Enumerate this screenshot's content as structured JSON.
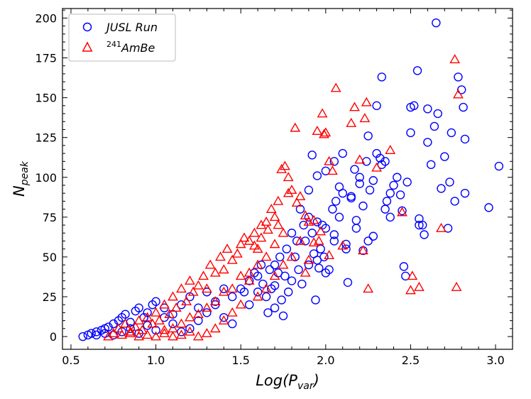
{
  "chart_data": {
    "type": "scatter",
    "title": "",
    "xlabel": "Log(P",
    "xlabel_sub": "var",
    "xlabel_close": ")",
    "ylabel": "N",
    "ylabel_sub": "peak",
    "xlim": [
      0.45,
      3.1
    ],
    "ylim": [
      -8,
      206
    ],
    "xticks": [
      0.5,
      1.0,
      1.5,
      2.0,
      2.5,
      3.0
    ],
    "yticks": [
      0,
      25,
      50,
      75,
      100,
      125,
      150,
      175,
      200
    ],
    "xtick_labels": [
      "0.5",
      "1.0",
      "1.5",
      "2.0",
      "2.5",
      "3.0"
    ],
    "ytick_labels": [
      "0",
      "25",
      "50",
      "75",
      "100",
      "125",
      "150",
      "175",
      "200"
    ],
    "grid": false,
    "legend_position": "top-left",
    "series": [
      {
        "name": "JUSL Run",
        "legend_prefix": "",
        "legend_main": "JUSL Run",
        "marker": "circle",
        "color": "#0000ff",
        "points": [
          [
            0.57,
            0
          ],
          [
            0.6,
            1
          ],
          [
            0.62,
            2
          ],
          [
            0.65,
            3
          ],
          [
            0.68,
            4
          ],
          [
            0.7,
            5
          ],
          [
            0.72,
            6
          ],
          [
            0.75,
            8
          ],
          [
            0.78,
            10
          ],
          [
            0.8,
            12
          ],
          [
            0.82,
            14
          ],
          [
            0.85,
            9
          ],
          [
            0.88,
            16
          ],
          [
            0.9,
            18
          ],
          [
            0.93,
            12
          ],
          [
            0.95,
            15
          ],
          [
            0.98,
            20
          ],
          [
            1.0,
            22
          ],
          [
            1.05,
            18
          ],
          [
            1.1,
            14
          ],
          [
            1.15,
            20
          ],
          [
            1.2,
            25
          ],
          [
            1.25,
            18
          ],
          [
            1.3,
            15
          ],
          [
            1.35,
            22
          ],
          [
            1.4,
            12
          ],
          [
            1.45,
            8
          ],
          [
            1.5,
            30
          ],
          [
            1.52,
            28
          ],
          [
            1.55,
            35
          ],
          [
            1.58,
            40
          ],
          [
            1.6,
            38
          ],
          [
            1.62,
            45
          ],
          [
            1.65,
            25
          ],
          [
            1.66,
            15
          ],
          [
            1.68,
            30
          ],
          [
            1.7,
            32
          ],
          [
            1.72,
            40
          ],
          [
            1.74,
            23
          ],
          [
            1.75,
            13
          ],
          [
            1.77,
            55
          ],
          [
            1.78,
            28
          ],
          [
            1.8,
            35
          ],
          [
            1.82,
            50
          ],
          [
            1.84,
            42
          ],
          [
            1.86,
            33
          ],
          [
            1.88,
            60
          ],
          [
            1.9,
            45
          ],
          [
            1.92,
            65
          ],
          [
            1.94,
            23
          ],
          [
            1.95,
            48
          ],
          [
            1.97,
            55
          ],
          [
            1.98,
            70
          ],
          [
            2.0,
            40
          ],
          [
            2.02,
            42
          ],
          [
            2.04,
            80
          ],
          [
            2.05,
            60
          ],
          [
            2.06,
            85
          ],
          [
            2.08,
            75
          ],
          [
            2.1,
            90
          ],
          [
            2.12,
            55
          ],
          [
            2.13,
            34
          ],
          [
            2.15,
            88
          ],
          [
            2.17,
            105
          ],
          [
            2.18,
            68
          ],
          [
            2.2,
            100
          ],
          [
            2.22,
            82
          ],
          [
            2.24,
            110
          ],
          [
            2.25,
            60
          ],
          [
            2.26,
            92
          ],
          [
            2.28,
            98
          ],
          [
            2.3,
            115
          ],
          [
            2.32,
            112
          ],
          [
            2.33,
            108
          ],
          [
            2.35,
            80
          ],
          [
            2.36,
            85
          ],
          [
            2.38,
            75
          ],
          [
            2.4,
            95
          ],
          [
            2.42,
            100
          ],
          [
            2.44,
            89
          ],
          [
            2.46,
            44
          ],
          [
            2.47,
            38
          ],
          [
            2.48,
            97
          ],
          [
            2.5,
            128
          ],
          [
            2.52,
            145
          ],
          [
            2.54,
            167
          ],
          [
            2.55,
            74
          ],
          [
            2.57,
            70
          ],
          [
            2.58,
            64
          ],
          [
            2.6,
            143
          ],
          [
            2.62,
            108
          ],
          [
            2.64,
            132
          ],
          [
            2.65,
            197
          ],
          [
            2.66,
            140
          ],
          [
            2.68,
            93
          ],
          [
            2.7,
            113
          ],
          [
            2.72,
            68
          ],
          [
            2.74,
            128
          ],
          [
            2.76,
            85
          ],
          [
            2.78,
            163
          ],
          [
            2.8,
            155
          ],
          [
            2.82,
            124
          ],
          [
            2.96,
            81
          ],
          [
            3.02,
            107
          ],
          [
            1.92,
            114
          ],
          [
            1.95,
            101
          ],
          [
            2.0,
            104
          ],
          [
            2.05,
            110
          ],
          [
            2.1,
            115
          ],
          [
            2.15,
            87
          ],
          [
            2.2,
            96
          ],
          [
            2.25,
            126
          ],
          [
            2.3,
            145
          ],
          [
            2.33,
            163
          ],
          [
            2.38,
            90
          ],
          [
            2.45,
            79
          ],
          [
            2.5,
            144
          ],
          [
            2.55,
            70
          ],
          [
            2.6,
            122
          ],
          [
            2.73,
            97
          ],
          [
            2.81,
            144
          ],
          [
            2.82,
            90
          ],
          [
            1.85,
            80
          ],
          [
            1.9,
            92
          ],
          [
            1.95,
            72
          ],
          [
            2.0,
            68
          ],
          [
            2.05,
            64
          ],
          [
            2.08,
            94
          ],
          [
            2.12,
            58
          ],
          [
            2.18,
            73
          ],
          [
            2.22,
            54
          ],
          [
            2.28,
            63
          ],
          [
            2.35,
            110
          ],
          [
            1.7,
            45
          ],
          [
            1.73,
            50
          ],
          [
            1.76,
            38
          ],
          [
            1.8,
            65
          ],
          [
            1.83,
            60
          ],
          [
            1.87,
            70
          ],
          [
            1.9,
            75
          ],
          [
            1.93,
            52
          ],
          [
            1.96,
            43
          ],
          [
            1.99,
            50
          ],
          [
            1.55,
            20
          ],
          [
            1.6,
            28
          ],
          [
            1.63,
            33
          ],
          [
            1.67,
            42
          ],
          [
            1.7,
            18
          ],
          [
            1.45,
            25
          ],
          [
            1.4,
            30
          ],
          [
            1.35,
            20
          ],
          [
            1.3,
            28
          ],
          [
            1.25,
            10
          ],
          [
            1.2,
            5
          ],
          [
            1.15,
            3
          ],
          [
            1.1,
            8
          ],
          [
            1.05,
            12
          ],
          [
            1.0,
            4
          ],
          [
            0.95,
            7
          ],
          [
            0.9,
            2
          ],
          [
            0.85,
            5
          ],
          [
            0.8,
            3
          ],
          [
            0.75,
            1
          ],
          [
            0.7,
            2
          ],
          [
            0.65,
            1
          ]
        ]
      },
      {
        "name": "241AmBe",
        "legend_prefix": "241",
        "legend_main": "AmBe",
        "marker": "triangle",
        "color": "#ff0000",
        "points": [
          [
            0.72,
            0
          ],
          [
            0.75,
            2
          ],
          [
            0.78,
            5
          ],
          [
            0.8,
            1
          ],
          [
            0.82,
            8
          ],
          [
            0.85,
            3
          ],
          [
            0.88,
            6
          ],
          [
            0.9,
            10
          ],
          [
            0.92,
            4
          ],
          [
            0.95,
            12
          ],
          [
            0.98,
            8
          ],
          [
            1.0,
            15
          ],
          [
            1.02,
            10
          ],
          [
            1.05,
            20
          ],
          [
            1.08,
            14
          ],
          [
            1.1,
            25
          ],
          [
            1.12,
            18
          ],
          [
            1.15,
            30
          ],
          [
            1.18,
            22
          ],
          [
            1.2,
            35
          ],
          [
            1.22,
            28
          ],
          [
            1.25,
            32
          ],
          [
            1.28,
            38
          ],
          [
            1.3,
            30
          ],
          [
            1.32,
            45
          ],
          [
            1.35,
            40
          ],
          [
            1.38,
            50
          ],
          [
            1.4,
            42
          ],
          [
            1.42,
            55
          ],
          [
            1.45,
            48
          ],
          [
            1.48,
            52
          ],
          [
            1.5,
            58
          ],
          [
            1.52,
            62
          ],
          [
            1.55,
            60
          ],
          [
            1.58,
            65
          ],
          [
            1.6,
            55
          ],
          [
            1.62,
            70
          ],
          [
            1.65,
            72
          ],
          [
            1.68,
            80
          ],
          [
            1.7,
            75
          ],
          [
            1.72,
            85
          ],
          [
            1.74,
            105
          ],
          [
            1.76,
            107
          ],
          [
            1.78,
            100
          ],
          [
            1.8,
            92
          ],
          [
            1.82,
            131
          ],
          [
            1.85,
            88
          ],
          [
            1.88,
            40
          ],
          [
            1.9,
            48
          ],
          [
            1.93,
            73
          ],
          [
            1.96,
            60
          ],
          [
            1.98,
            140
          ],
          [
            2.0,
            128
          ],
          [
            2.02,
            110
          ],
          [
            2.04,
            104
          ],
          [
            2.06,
            156
          ],
          [
            2.1,
            57
          ],
          [
            2.15,
            134
          ],
          [
            2.17,
            144
          ],
          [
            2.2,
            111
          ],
          [
            2.22,
            54
          ],
          [
            2.23,
            137
          ],
          [
            2.24,
            147
          ],
          [
            2.25,
            30
          ],
          [
            2.3,
            106
          ],
          [
            2.38,
            117
          ],
          [
            2.45,
            78
          ],
          [
            2.5,
            29
          ],
          [
            2.51,
            38
          ],
          [
            2.55,
            31
          ],
          [
            2.68,
            68
          ],
          [
            2.76,
            174
          ],
          [
            2.77,
            31
          ],
          [
            2.78,
            152
          ],
          [
            1.95,
            129
          ],
          [
            1.99,
            127
          ],
          [
            1.9,
            72
          ],
          [
            1.85,
            60
          ],
          [
            1.8,
            50
          ],
          [
            1.75,
            45
          ],
          [
            1.7,
            38
          ],
          [
            1.65,
            30
          ],
          [
            1.6,
            25
          ],
          [
            1.55,
            35
          ],
          [
            1.5,
            20
          ],
          [
            1.45,
            15
          ],
          [
            1.4,
            10
          ],
          [
            1.35,
            5
          ],
          [
            1.3,
            2
          ],
          [
            1.25,
            0
          ],
          [
            1.2,
            3
          ],
          [
            1.15,
            1
          ],
          [
            1.1,
            0
          ],
          [
            1.05,
            2
          ],
          [
            1.0,
            0
          ],
          [
            0.95,
            1
          ],
          [
            0.9,
            0
          ],
          [
            0.85,
            2
          ],
          [
            1.75,
            65
          ],
          [
            1.7,
            58
          ],
          [
            1.65,
            50
          ],
          [
            1.6,
            45
          ],
          [
            1.55,
            40
          ],
          [
            1.5,
            38
          ],
          [
            1.45,
            30
          ],
          [
            1.4,
            28
          ],
          [
            1.35,
            22
          ],
          [
            1.3,
            18
          ],
          [
            1.25,
            14
          ],
          [
            1.2,
            12
          ],
          [
            1.15,
            8
          ],
          [
            1.1,
            5
          ],
          [
            1.05,
            4
          ],
          [
            1.58,
            57
          ],
          [
            1.62,
            62
          ],
          [
            1.66,
            67
          ],
          [
            1.72,
            70
          ],
          [
            1.78,
            90
          ],
          [
            1.83,
            84
          ],
          [
            1.88,
            76
          ],
          [
            1.93,
            59
          ],
          [
            1.97,
            66
          ],
          [
            2.02,
            51
          ]
        ]
      }
    ]
  }
}
